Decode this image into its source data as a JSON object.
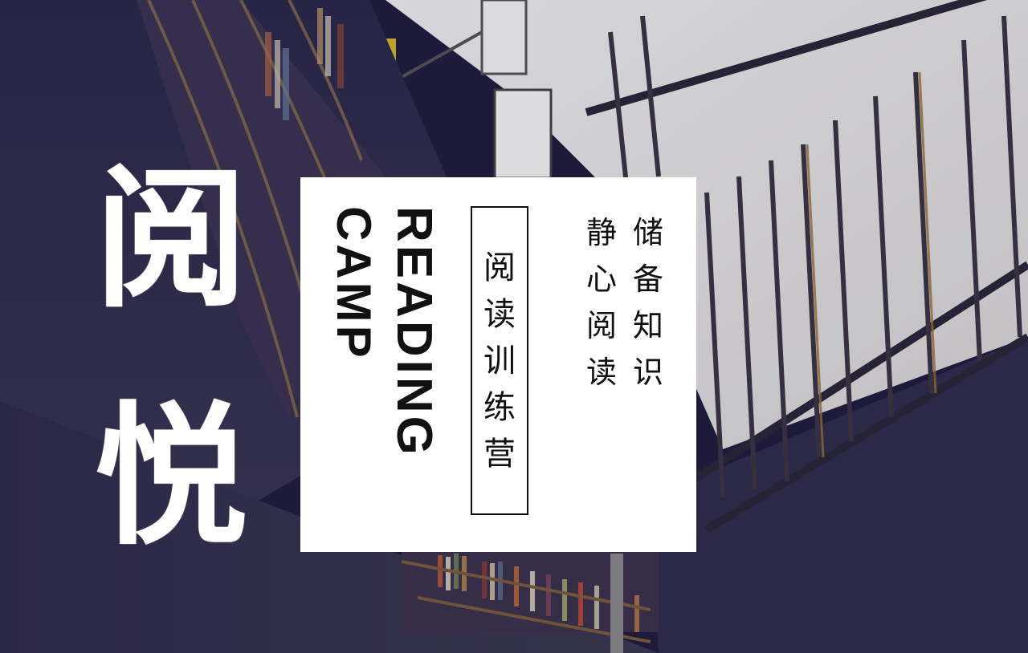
{
  "hero": {
    "char1": "阅",
    "char2": "悦"
  },
  "card": {
    "title_en_1": "READING",
    "title_en_2": "CAMP",
    "title_cn_chars": [
      "阅",
      "读",
      "训",
      "练",
      "营"
    ],
    "slogan_right_chars": [
      "储",
      "备",
      "知",
      "识"
    ],
    "slogan_left_chars": [
      "静",
      "心",
      "阅",
      "读"
    ]
  },
  "colors": {
    "overlay": "#1c1a3a",
    "card_bg": "#ffffff",
    "text_dark": "#111111",
    "hero_text": "#ffffff"
  }
}
